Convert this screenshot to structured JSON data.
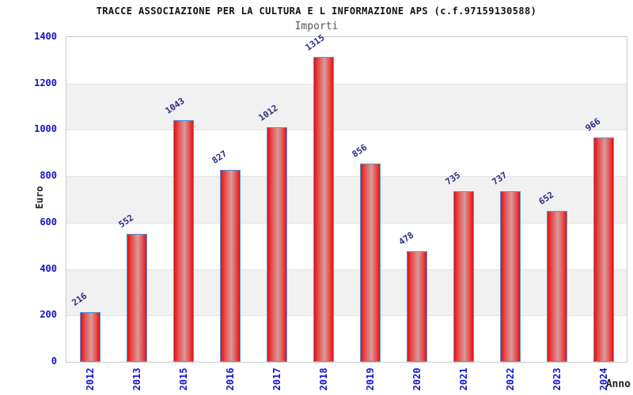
{
  "chart_data": {
    "type": "bar",
    "title": "TRACCE ASSOCIAZIONE PER LA CULTURA E L INFORMAZIONE APS (c.f.97159130588)",
    "subtitle": "Importi",
    "xlabel": "Anno",
    "ylabel": "Euro",
    "categories": [
      "2012",
      "2013",
      "2015",
      "2016",
      "2017",
      "2018",
      "2019",
      "2020",
      "2021",
      "2022",
      "2023",
      "2024"
    ],
    "values": [
      216,
      552,
      1043,
      827,
      1012,
      1315,
      856,
      478,
      735,
      737,
      652,
      966
    ],
    "ylim": [
      0,
      1400
    ],
    "ytick_step": 200,
    "grid": "alternating-horizontal-bands",
    "legend": "none",
    "colors": {
      "title": "#111111",
      "subtitle": "#555555",
      "axis_title": "#222222",
      "tick_label": "#1414cc",
      "value_label": "#2b2b87",
      "bar_fill_edge": "#df1212",
      "bar_fill_mid": "#ea4a4a",
      "bar_fill_highlight": "#d59c9c",
      "bar_border": "#4a9be0",
      "band_gray": "#f1f1f1",
      "band_white": "#ffffff",
      "band_line": "#e3e3e3",
      "plot_border": "#c9c9c9"
    }
  }
}
